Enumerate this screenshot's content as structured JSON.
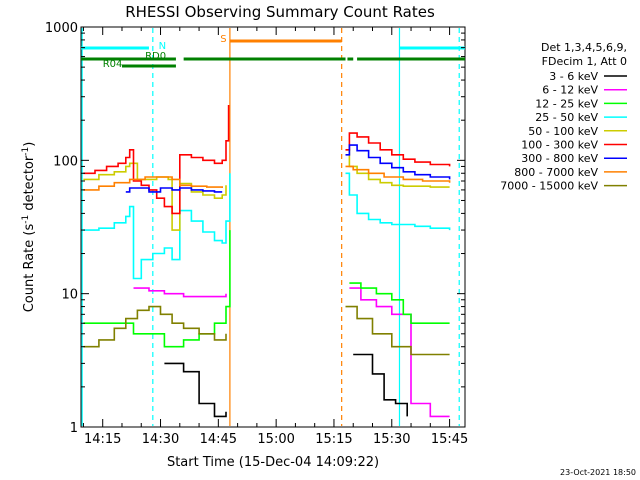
{
  "chart_data": {
    "type": "line",
    "title": "RHESSI Observing Summary Count Rates",
    "xlabel": "Start Time (15-Dec-04 14:09:22)",
    "ylabel": "Count Rate (s⁻¹ detector⁻¹)",
    "ylabel_main": "Count Rate (s",
    "ylabel_exp1": "-1",
    "ylabel_mid": " detector",
    "ylabel_exp2": "-1",
    "ylabel_end": ")",
    "y_scale": "log",
    "ylim": [
      1,
      1000
    ],
    "xlim": [
      "14:09:22",
      "15:49:00"
    ],
    "x_ticks": [
      "14:15",
      "14:30",
      "14:45",
      "15:00",
      "15:15",
      "15:30",
      "15:45"
    ],
    "y_ticks": [
      "1",
      "10",
      "100",
      "1000"
    ],
    "footer": "23-Oct-2021 18:50",
    "legend": {
      "header1": "Det 1,3,4,5,6,9,",
      "header2": "FDecim 1, Att 0",
      "placement": "right",
      "items": [
        {
          "label": "3 - 6 keV",
          "color": "#000000"
        },
        {
          "label": "6 - 12 keV",
          "color": "#ff00ff"
        },
        {
          "label": "12 - 25 keV",
          "color": "#00ff00"
        },
        {
          "label": "25 - 50 keV",
          "color": "#00ffff"
        },
        {
          "label": "50 - 100 keV",
          "color": "#cccc00"
        },
        {
          "label": "100 - 300 keV",
          "color": "#ff0000"
        },
        {
          "label": "300 - 800 keV",
          "color": "#0000ff"
        },
        {
          "label": "800 - 7000 keV",
          "color": "#ff8000"
        },
        {
          "label": "7000 - 15000 keV",
          "color": "#808000"
        }
      ]
    },
    "flag_bars": [
      {
        "label": "N",
        "color": "#00ffff",
        "segments": [
          [
            "14:09:22",
            "14:27:00"
          ],
          [
            "15:32:00",
            "15:49:00"
          ]
        ]
      },
      {
        "label": "RD0",
        "color": "#008000",
        "segments": [
          [
            "14:09:22",
            "14:34:00"
          ],
          [
            "14:36:00",
            "15:18:00"
          ],
          [
            "15:18:30",
            "15:20:00"
          ],
          [
            "15:21:00",
            "15:49:00"
          ]
        ]
      },
      {
        "label": "R04",
        "color": "#008000",
        "segments": [
          [
            "14:20:00",
            "14:34:00"
          ]
        ]
      },
      {
        "label": "S",
        "color": "#ff8000",
        "segments": [
          [
            "14:48:00",
            "15:17:00"
          ]
        ]
      }
    ],
    "series": [
      {
        "name": "3 - 6 keV",
        "color": "#000000",
        "segments": [
          {
            "x": [
              "14:31",
              "14:36",
              "14:40",
              "14:44",
              "14:47"
            ],
            "y": [
              3.0,
              2.6,
              1.5,
              1.2,
              1.3
            ]
          },
          {
            "x": [
              "15:20",
              "15:25",
              "15:28",
              "15:31",
              "15:34"
            ],
            "y": [
              3.5,
              2.5,
              1.6,
              1.5,
              1.2
            ]
          }
        ]
      },
      {
        "name": "6 - 12 keV",
        "color": "#ff00ff",
        "segments": [
          {
            "x": [
              "14:23",
              "14:27",
              "14:31",
              "14:36",
              "14:40",
              "14:44",
              "14:47"
            ],
            "y": [
              11,
              10.5,
              10,
              9.5,
              9.5,
              9.5,
              10
            ]
          },
          {
            "x": [
              "15:19",
              "15:22",
              "15:26",
              "15:30",
              "15:35",
              "15:40",
              "15:45"
            ],
            "y": [
              11,
              9,
              8,
              7,
              1.5,
              1.2,
              1.2
            ]
          }
        ]
      },
      {
        "name": "12 - 25 keV",
        "color": "#00ff00",
        "segments": [
          {
            "x": [
              "14:10",
              "14:15",
              "14:20",
              "14:23",
              "14:27",
              "14:31",
              "14:36",
              "14:40",
              "14:44",
              "14:47",
              "14:48"
            ],
            "y": [
              6,
              6,
              6,
              5,
              5,
              4,
              4.5,
              5,
              6,
              8,
              30
            ]
          },
          {
            "x": [
              "15:19",
              "15:22",
              "15:26",
              "15:30",
              "15:33",
              "15:35",
              "15:40",
              "15:45"
            ],
            "y": [
              12,
              11,
              10,
              9,
              7,
              6,
              6,
              6
            ]
          }
        ]
      },
      {
        "name": "25 - 50 keV",
        "color": "#00ffff",
        "segments": [
          {
            "x": [
              "14:10",
              "14:14",
              "14:18",
              "14:21",
              "14:22",
              "14:23",
              "14:25",
              "14:28",
              "14:31",
              "14:33",
              "14:35",
              "14:38",
              "14:41",
              "14:44",
              "14:46",
              "14:47",
              "14:48"
            ],
            "y": [
              30,
              31,
              34,
              38,
              45,
              13,
              18,
              20,
              22,
              18,
              42,
              35,
              29,
              25,
              24,
              35,
              80
            ]
          },
          {
            "x": [
              "15:18",
              "15:19",
              "15:21",
              "15:24",
              "15:27",
              "15:30",
              "15:33",
              "15:36",
              "15:40",
              "15:45"
            ],
            "y": [
              80,
              55,
              40,
              36,
              34,
              33,
              33,
              32,
              31,
              30
            ]
          }
        ]
      },
      {
        "name": "50 - 100 keV",
        "color": "#cccc00",
        "segments": [
          {
            "x": [
              "14:10",
              "14:14",
              "14:18",
              "14:21",
              "14:22",
              "14:24",
              "14:26",
              "14:29",
              "14:32",
              "14:33",
              "14:35",
              "14:38",
              "14:41",
              "14:44",
              "14:46",
              "14:47"
            ],
            "y": [
              72,
              78,
              82,
              90,
              95,
              72,
              72,
              75,
              72,
              30,
              67,
              58,
              55,
              52,
              55,
              65
            ]
          },
          {
            "x": [
              "15:18",
              "15:19",
              "15:21",
              "15:24",
              "15:27",
              "15:30",
              "15:33",
              "15:36",
              "15:40",
              "15:45"
            ],
            "y": [
              120,
              90,
              80,
              72,
              68,
              65,
              64,
              64,
              63,
              63
            ]
          }
        ]
      },
      {
        "name": "100 - 300 keV",
        "color": "#ff0000",
        "segments": [
          {
            "x": [
              "14:10",
              "14:13",
              "14:16",
              "14:19",
              "14:21",
              "14:22",
              "14:23",
              "14:25",
              "14:27",
              "14:29",
              "14:31",
              "14:33",
              "14:35",
              "14:38",
              "14:41",
              "14:44",
              "14:46",
              "14:47",
              "14:47:40"
            ],
            "y": [
              80,
              84,
              90,
              95,
              105,
              120,
              70,
              65,
              60,
              52,
              45,
              40,
              110,
              105,
              100,
              95,
              100,
              140,
              260
            ]
          },
          {
            "x": [
              "15:18",
              "15:19",
              "15:21",
              "15:24",
              "15:27",
              "15:30",
              "15:33",
              "15:36",
              "15:40",
              "15:45"
            ],
            "y": [
              120,
              160,
              150,
              135,
              120,
              110,
              102,
              97,
              93,
              90
            ]
          }
        ]
      },
      {
        "name": "300 - 800 keV",
        "color": "#0000ff",
        "segments": [
          {
            "x": [
              "14:21",
              "14:22",
              "14:24",
              "14:27",
              "14:30",
              "14:33",
              "14:35",
              "14:38",
              "14:41",
              "14:44",
              "14:46"
            ],
            "y": [
              58,
              62,
              62,
              58,
              62,
              60,
              62,
              60,
              59,
              58,
              58
            ]
          },
          {
            "x": [
              "15:18",
              "15:19",
              "15:21",
              "15:24",
              "15:27",
              "15:30",
              "15:33",
              "15:36",
              "15:40",
              "15:45"
            ],
            "y": [
              110,
              130,
              118,
              105,
              95,
              88,
              82,
              78,
              75,
              72
            ]
          }
        ]
      },
      {
        "name": "800 - 7000 keV",
        "color": "#ff8000",
        "segments": [
          {
            "x": [
              "14:10",
              "14:14",
              "14:18",
              "14:22",
              "14:26",
              "14:30",
              "14:33",
              "14:35",
              "14:38",
              "14:42",
              "14:46"
            ],
            "y": [
              60,
              64,
              68,
              72,
              75,
              75,
              72,
              65,
              64,
              63,
              62
            ]
          },
          {
            "x": [
              "15:18",
              "15:20",
              "15:24",
              "15:28",
              "15:33",
              "15:38",
              "15:45"
            ],
            "y": [
              90,
              85,
              80,
              75,
              72,
              70,
              68
            ]
          }
        ]
      },
      {
        "name": "7000 - 15000 keV",
        "color": "#808000",
        "segments": [
          {
            "x": [
              "14:10",
              "14:14",
              "14:18",
              "14:21",
              "14:24",
              "14:27",
              "14:30",
              "14:33",
              "14:36",
              "14:40",
              "14:44",
              "14:47"
            ],
            "y": [
              4,
              4.5,
              5.5,
              6.5,
              7.5,
              8,
              7,
              6,
              5.5,
              5,
              4.5,
              5
            ]
          },
          {
            "x": [
              "15:18",
              "15:21",
              "15:25",
              "15:30",
              "15:35",
              "15:40",
              "15:45"
            ],
            "y": [
              8,
              6.5,
              5,
              4,
              3.5,
              3.5,
              3.5
            ]
          }
        ]
      }
    ],
    "vlines": [
      {
        "x": "14:09:40",
        "color": "#00ffff",
        "style": "solid"
      },
      {
        "x": "14:28:00",
        "color": "#00ffff",
        "style": "dashed"
      },
      {
        "x": "14:48:00",
        "color": "#ff8000",
        "style": "solid"
      },
      {
        "x": "15:17:00",
        "color": "#ff8000",
        "style": "dashed"
      },
      {
        "x": "15:32:00",
        "color": "#00ffff",
        "style": "solid"
      },
      {
        "x": "15:47:30",
        "color": "#00ffff",
        "style": "dashed"
      }
    ]
  }
}
